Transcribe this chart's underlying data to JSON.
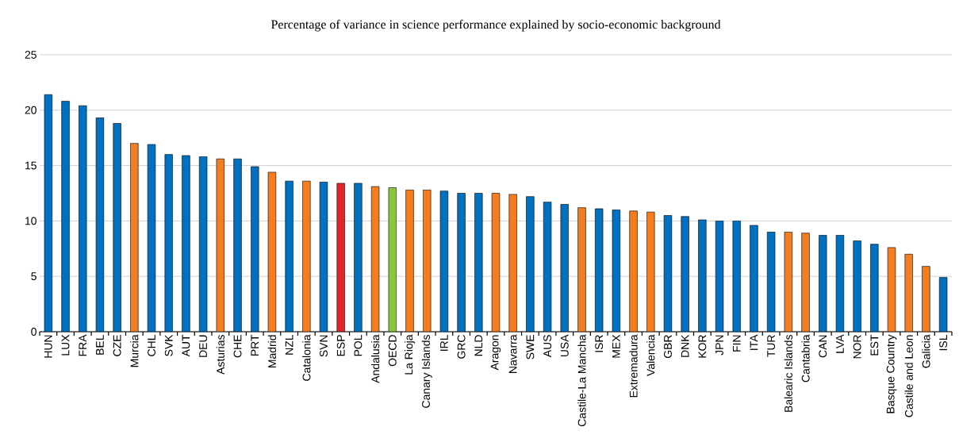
{
  "chart_data": {
    "type": "bar",
    "title": "Percentage of variance in science performance explained by socio-economic background",
    "categories": [
      "HUN",
      "LUX",
      "FRA",
      "BEL",
      "CZE",
      "Murcia",
      "CHL",
      "SVK",
      "AUT",
      "DEU",
      "Asturias",
      "CHE",
      "PRT",
      "Madrid",
      "NZL",
      "Catalonia",
      "SVN",
      "ESP",
      "POL",
      "Andalusia",
      "OECD",
      "La Rioja",
      "Canary Islands",
      "IRL",
      "GRC",
      "NLD",
      "Aragon",
      "Navarra",
      "SWE",
      "AUS",
      "USA",
      "Castile-La Mancha",
      "ISR",
      "MEX",
      "Extremadura",
      "Valencia",
      "GBR",
      "DNK",
      "KOR",
      "JPN",
      "FIN",
      "ITA",
      "TUR",
      "Balearic Islands",
      "Cantabria",
      "CAN",
      "LVA",
      "NOR",
      "EST",
      "Basque Country",
      "Castile and Leon",
      "Galicia",
      "ISL"
    ],
    "values": [
      21.4,
      20.8,
      20.4,
      19.3,
      18.8,
      17.0,
      16.9,
      16.0,
      15.9,
      15.8,
      15.6,
      15.6,
      14.9,
      14.4,
      13.6,
      13.6,
      13.5,
      13.4,
      13.4,
      13.1,
      13.0,
      12.8,
      12.8,
      12.7,
      12.5,
      12.5,
      12.5,
      12.4,
      12.2,
      11.7,
      11.5,
      11.2,
      11.1,
      11.0,
      10.9,
      10.8,
      10.5,
      10.4,
      10.1,
      10.0,
      10.0,
      9.6,
      9.0,
      9.0,
      8.9,
      8.7,
      8.7,
      8.2,
      7.9,
      7.6,
      7.0,
      5.9,
      4.9
    ],
    "colors": [
      "#0070c0",
      "#0070c0",
      "#0070c0",
      "#0070c0",
      "#0070c0",
      "#f47d20",
      "#0070c0",
      "#0070c0",
      "#0070c0",
      "#0070c0",
      "#f47d20",
      "#0070c0",
      "#0070c0",
      "#f47d20",
      "#0070c0",
      "#f47d20",
      "#0070c0",
      "#e3242b",
      "#0070c0",
      "#f47d20",
      "#8cc63f",
      "#f47d20",
      "#f47d20",
      "#0070c0",
      "#0070c0",
      "#0070c0",
      "#f47d20",
      "#f47d20",
      "#0070c0",
      "#0070c0",
      "#0070c0",
      "#f47d20",
      "#0070c0",
      "#0070c0",
      "#f47d20",
      "#f47d20",
      "#0070c0",
      "#0070c0",
      "#0070c0",
      "#0070c0",
      "#0070c0",
      "#0070c0",
      "#0070c0",
      "#f47d20",
      "#f47d20",
      "#0070c0",
      "#0070c0",
      "#0070c0",
      "#0070c0",
      "#f47d20",
      "#f47d20",
      "#f47d20",
      "#0070c0"
    ],
    "ylim": [
      0,
      25
    ],
    "yticks": [
      0,
      5,
      10,
      15,
      20,
      25
    ],
    "grid": "y"
  }
}
